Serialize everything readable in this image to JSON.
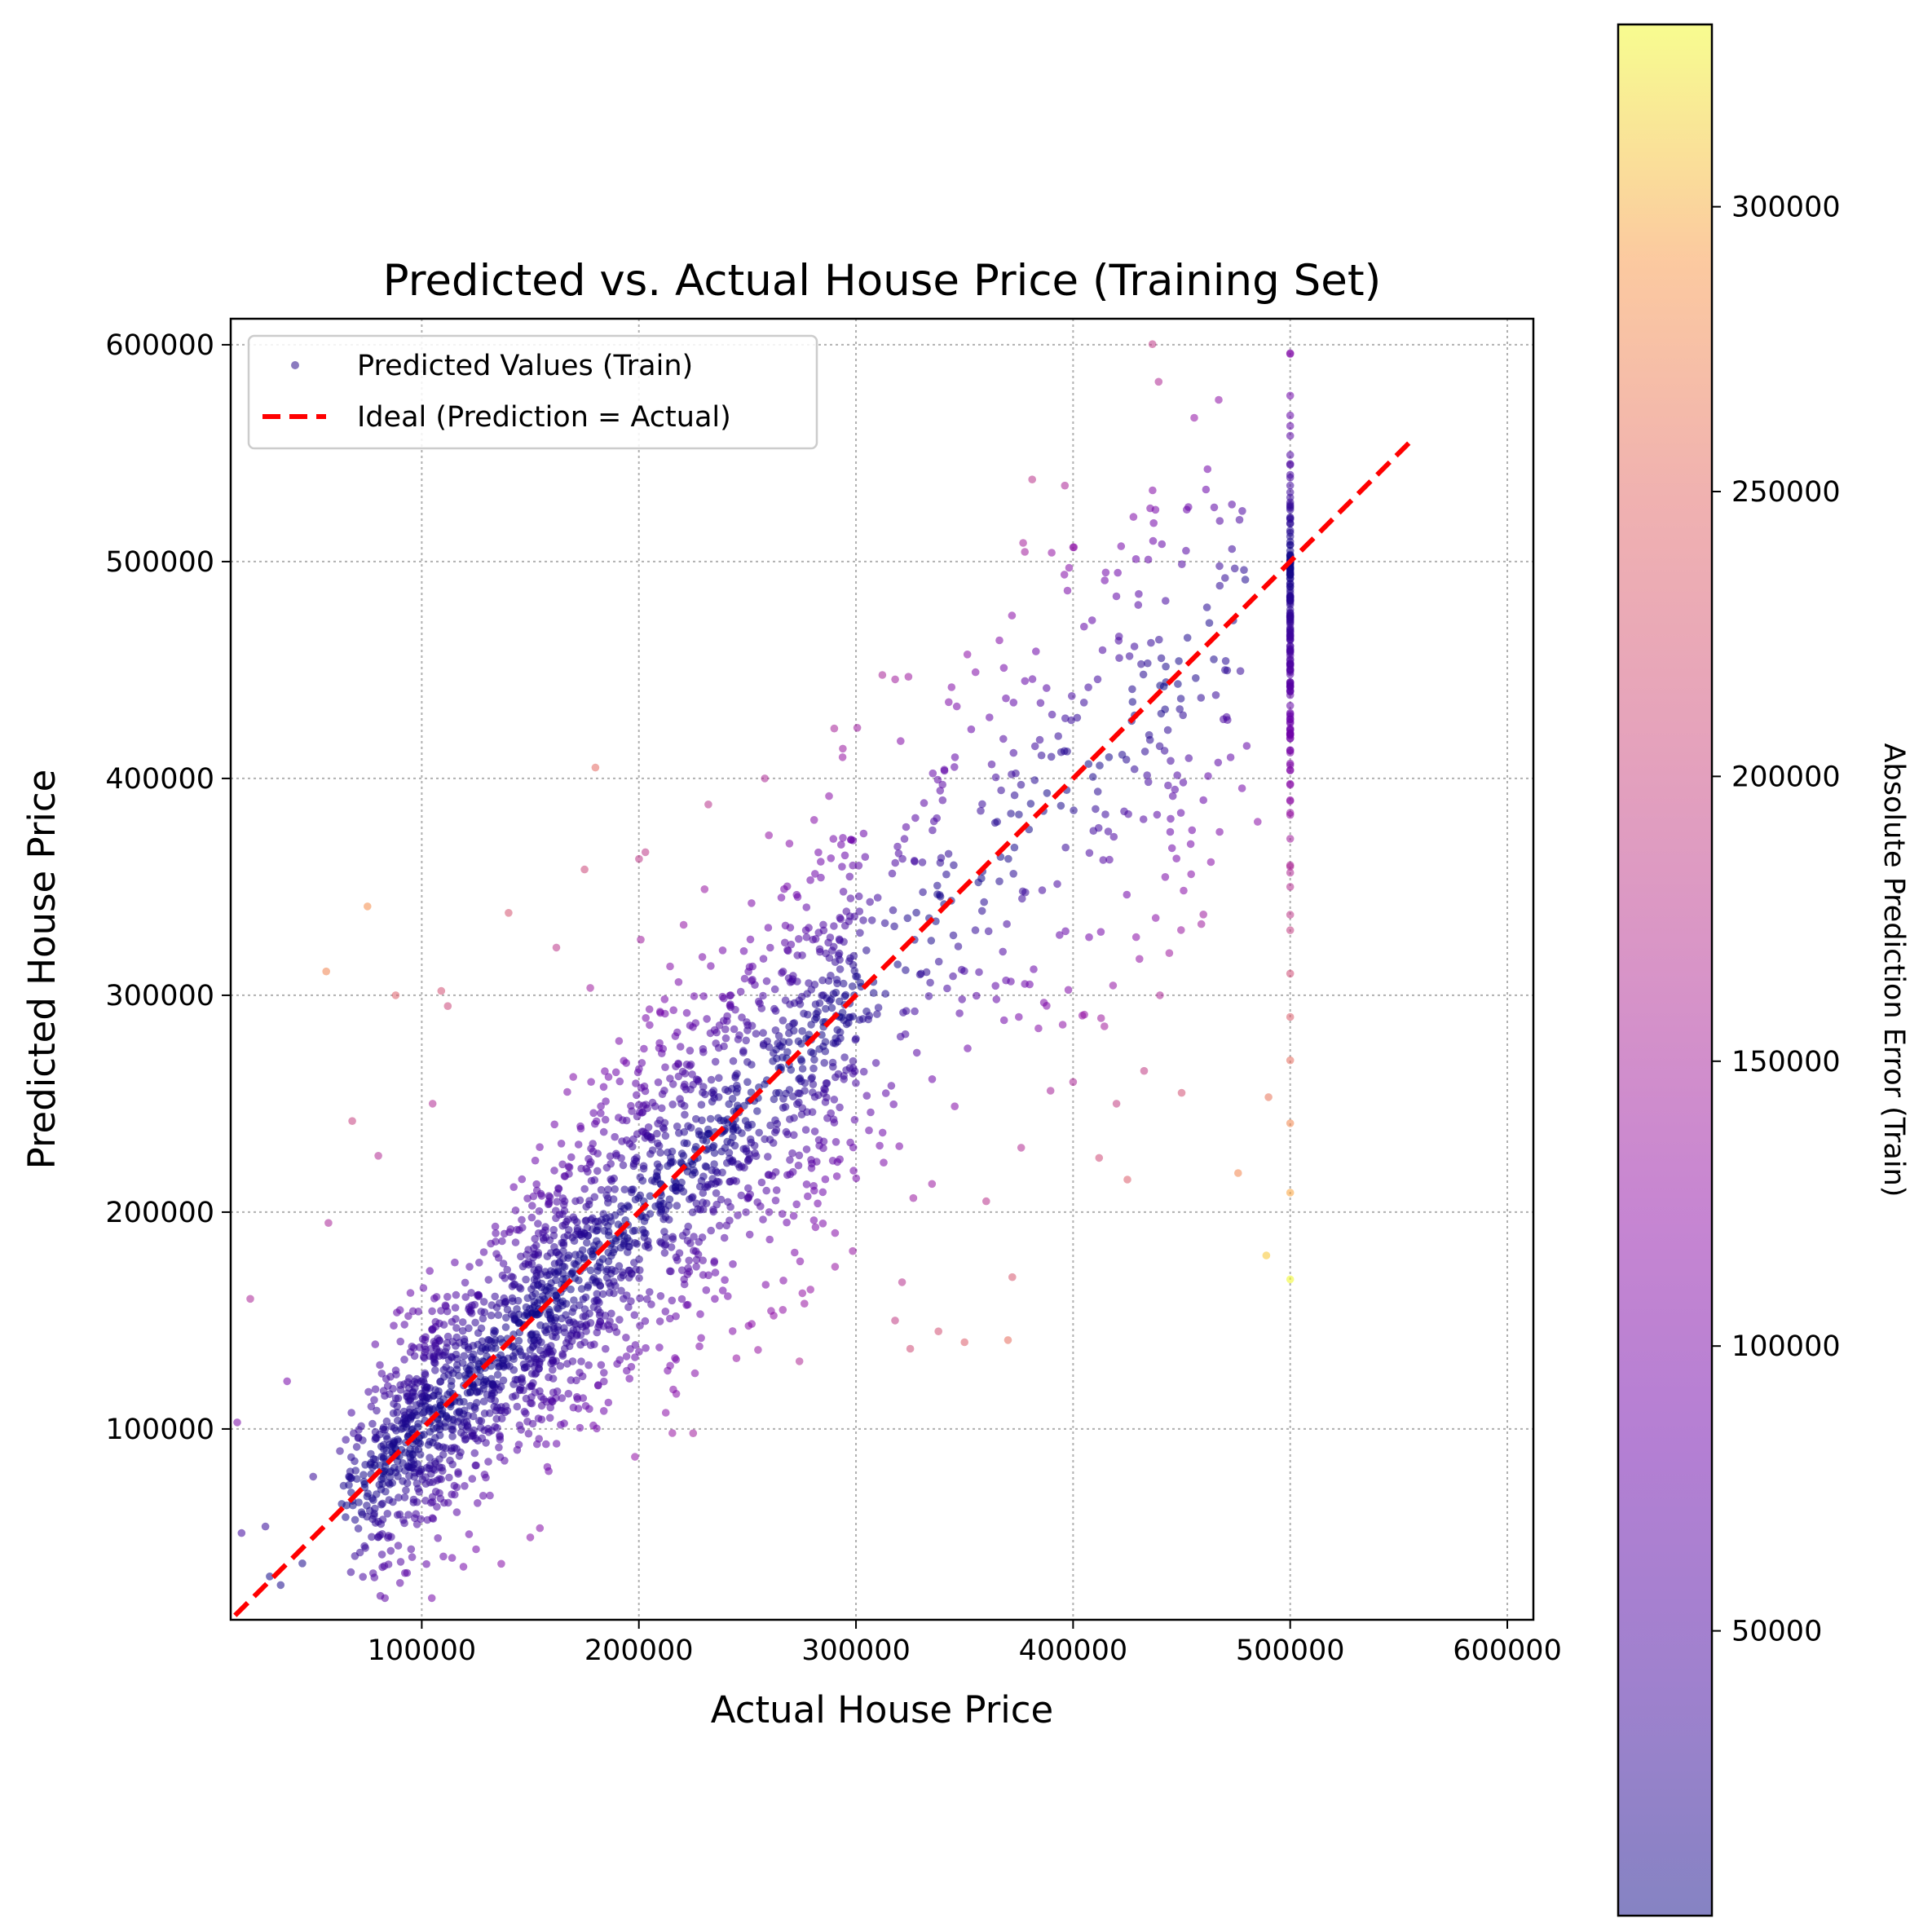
{
  "chart_data": {
    "type": "scatter",
    "title": "Predicted vs. Actual House Price (Training Set)",
    "xlabel": "Actual House Price",
    "ylabel": "Predicted House Price",
    "xlim": [
      12000,
      612000
    ],
    "ylim": [
      12000,
      612000
    ],
    "xticks": [
      "100000",
      "200000",
      "300000",
      "400000",
      "500000",
      "600000"
    ],
    "yticks": [
      "100000",
      "200000",
      "300000",
      "400000",
      "500000",
      "600000"
    ],
    "grid": true,
    "legend": {
      "placement": "top-left",
      "entries": [
        "Predicted Values (Train)",
        "Ideal (Prediction = Actual)"
      ]
    },
    "colorbar": {
      "label": "Absolute Prediction Error (Train)",
      "colormap": "plasma",
      "alpha": 0.5,
      "range": [
        0,
        332000
      ],
      "ticks": [
        "50000",
        "100000",
        "150000",
        "200000",
        "250000",
        "300000"
      ]
    },
    "series": [
      {
        "name": "Predicted Values (Train)",
        "type": "scatter",
        "color_encoding": "absolute error",
        "points": [
          [
            15000,
            103000
          ],
          [
            17000,
            52000
          ],
          [
            21000,
            160000
          ],
          [
            28000,
            55000
          ],
          [
            30000,
            32000
          ],
          [
            35000,
            28000
          ],
          [
            38000,
            122000
          ],
          [
            45000,
            38000
          ],
          [
            50000,
            78000
          ],
          [
            56000,
            311000
          ],
          [
            57000,
            195000
          ],
          [
            65000,
            95000
          ],
          [
            68000,
            242000
          ],
          [
            75000,
            341000
          ],
          [
            78000,
            60000
          ],
          [
            80000,
            226000
          ],
          [
            88000,
            300000
          ],
          [
            90000,
            29000
          ],
          [
            95000,
            85000
          ],
          [
            105000,
            250000
          ],
          [
            109000,
            302000
          ],
          [
            112000,
            295000
          ],
          [
            140000,
            338000
          ],
          [
            162000,
            322000
          ],
          [
            180000,
            405000
          ],
          [
            175000,
            358000
          ],
          [
            203000,
            366000
          ],
          [
            232000,
            388000
          ],
          [
            258000,
            400000
          ],
          [
            290000,
            423000
          ],
          [
            120000,
            95000
          ],
          [
            135000,
            125000
          ],
          [
            150000,
            50000
          ],
          [
            155000,
            140000
          ],
          [
            165000,
            175000
          ],
          [
            175000,
            190000
          ],
          [
            190000,
            130000
          ],
          [
            210000,
            205000
          ],
          [
            225000,
            98000
          ],
          [
            235000,
            160000
          ],
          [
            250000,
            260000
          ],
          [
            260000,
            200000
          ],
          [
            275000,
            245000
          ],
          [
            285000,
            300000
          ],
          [
            300000,
            280000
          ],
          [
            310000,
            345000
          ],
          [
            318000,
            150000
          ],
          [
            325000,
            137000
          ],
          [
            330000,
            310000
          ],
          [
            335000,
            213000
          ],
          [
            338000,
            145000
          ],
          [
            345000,
            360000
          ],
          [
            350000,
            140000
          ],
          [
            355000,
            330000
          ],
          [
            360000,
            205000
          ],
          [
            365000,
            380000
          ],
          [
            370000,
            141000
          ],
          [
            372000,
            170000
          ],
          [
            375000,
            290000
          ],
          [
            380000,
            305000
          ],
          [
            390000,
            410000
          ],
          [
            396000,
            494000
          ],
          [
            400000,
            260000
          ],
          [
            405000,
            435000
          ],
          [
            412000,
            225000
          ],
          [
            420000,
            250000
          ],
          [
            425000,
            215000
          ],
          [
            430000,
            480000
          ],
          [
            435000,
            420000
          ],
          [
            440000,
            300000
          ],
          [
            450000,
            255000
          ],
          [
            452000,
            505000
          ],
          [
            460000,
            390000
          ],
          [
            465000,
            525000
          ],
          [
            470000,
            450000
          ],
          [
            476000,
            218000
          ],
          [
            480000,
            415000
          ],
          [
            485000,
            380000
          ],
          [
            489000,
            180000
          ],
          [
            490000,
            253000
          ],
          [
            500000,
            558000
          ],
          [
            500000,
            540000
          ],
          [
            500000,
            520000
          ],
          [
            500000,
            505000
          ],
          [
            500000,
            500000
          ],
          [
            500000,
            480000
          ],
          [
            500000,
            450000
          ],
          [
            500000,
            420000
          ],
          [
            500000,
            390000
          ],
          [
            500000,
            360000
          ],
          [
            500000,
            330000
          ],
          [
            500000,
            310000
          ],
          [
            500000,
            290000
          ],
          [
            500000,
            270000
          ],
          [
            500000,
            241000
          ],
          [
            500000,
            209000
          ],
          [
            500000,
            169000
          ]
        ]
      },
      {
        "name": "Ideal (Prediction = Actual)",
        "type": "line",
        "color": "#ff0000",
        "style": "dashed",
        "points": [
          [
            14000,
            14000
          ],
          [
            557000,
            557000
          ]
        ]
      }
    ]
  }
}
